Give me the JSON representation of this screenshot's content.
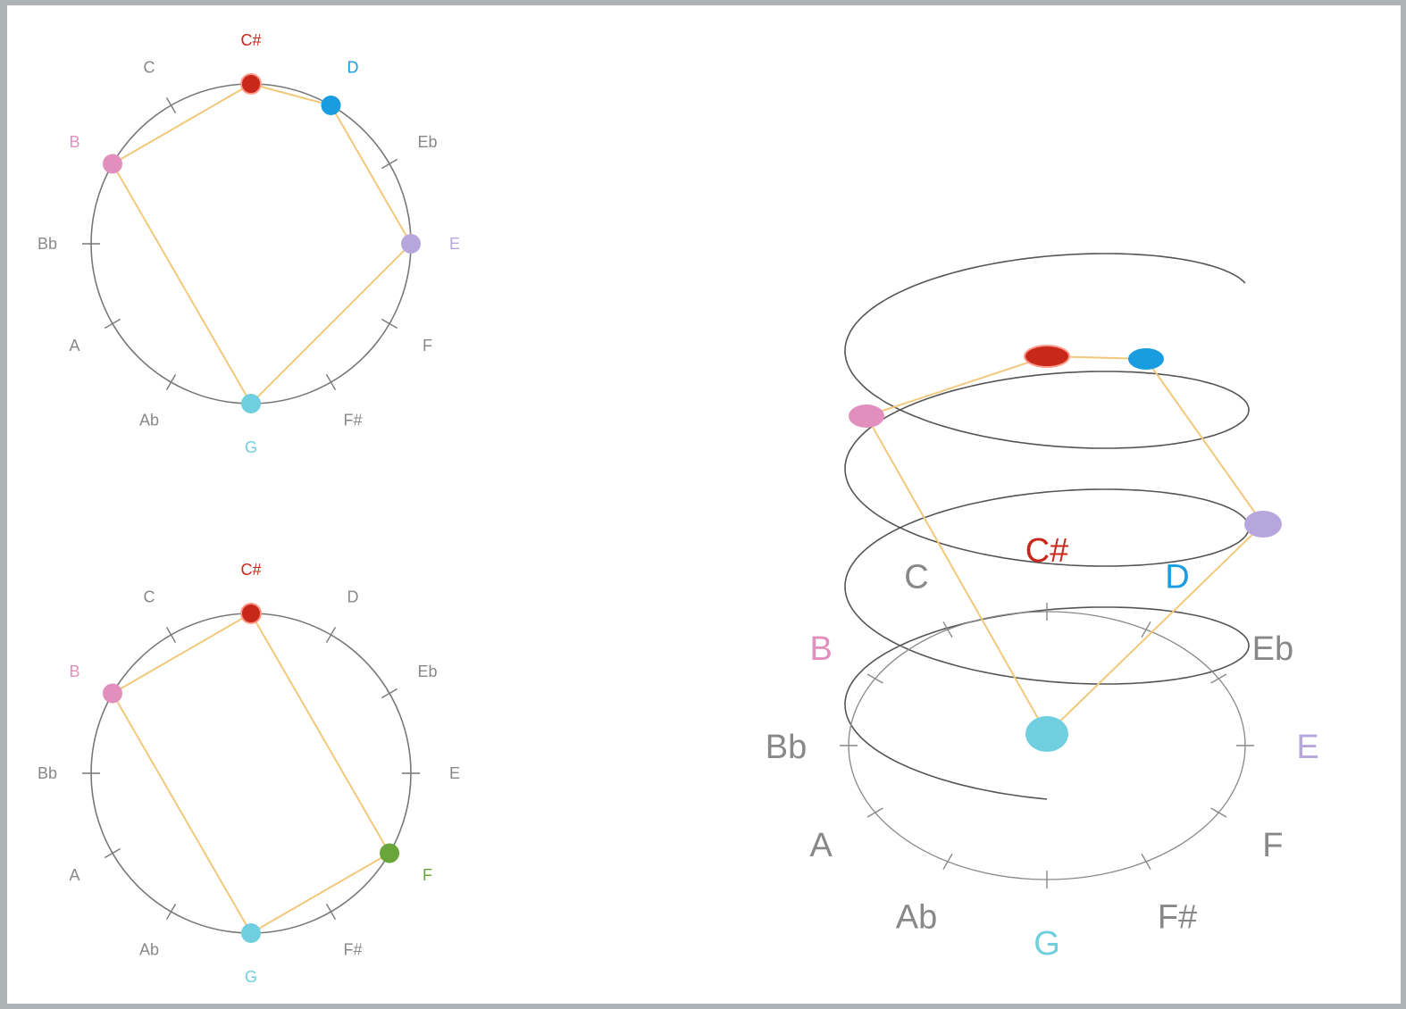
{
  "pitch_classes": [
    "C",
    "C#",
    "D",
    "Eb",
    "E",
    "F",
    "F#",
    "G",
    "Ab",
    "A",
    "Bb",
    "B"
  ],
  "colors": {
    "C#": "#c8281a",
    "D": "#1a9de0",
    "E": "#b7a6dd",
    "F": "#6aa53a",
    "G": "#6fcfdf",
    "B": "#e38fbd",
    "label_default": "#888888",
    "circle": "#777777",
    "helix": "#555555",
    "chord_line": "#f2c87a"
  },
  "diagrams": [
    {
      "name": "top-left-pitch-circle",
      "highlighted": [
        "C#",
        "D",
        "E",
        "G",
        "B"
      ],
      "chord_order": [
        "C#",
        "D",
        "E",
        "G",
        "B"
      ]
    },
    {
      "name": "bottom-left-pitch-circle",
      "highlighted": [
        "C#",
        "F",
        "G",
        "B"
      ],
      "chord_order": [
        "C#",
        "F",
        "G",
        "B"
      ]
    },
    {
      "name": "helix",
      "highlighted": [
        "C#",
        "D",
        "E",
        "G",
        "B"
      ],
      "chord_order": [
        "C#",
        "D",
        "E",
        "G",
        "B"
      ]
    }
  ]
}
